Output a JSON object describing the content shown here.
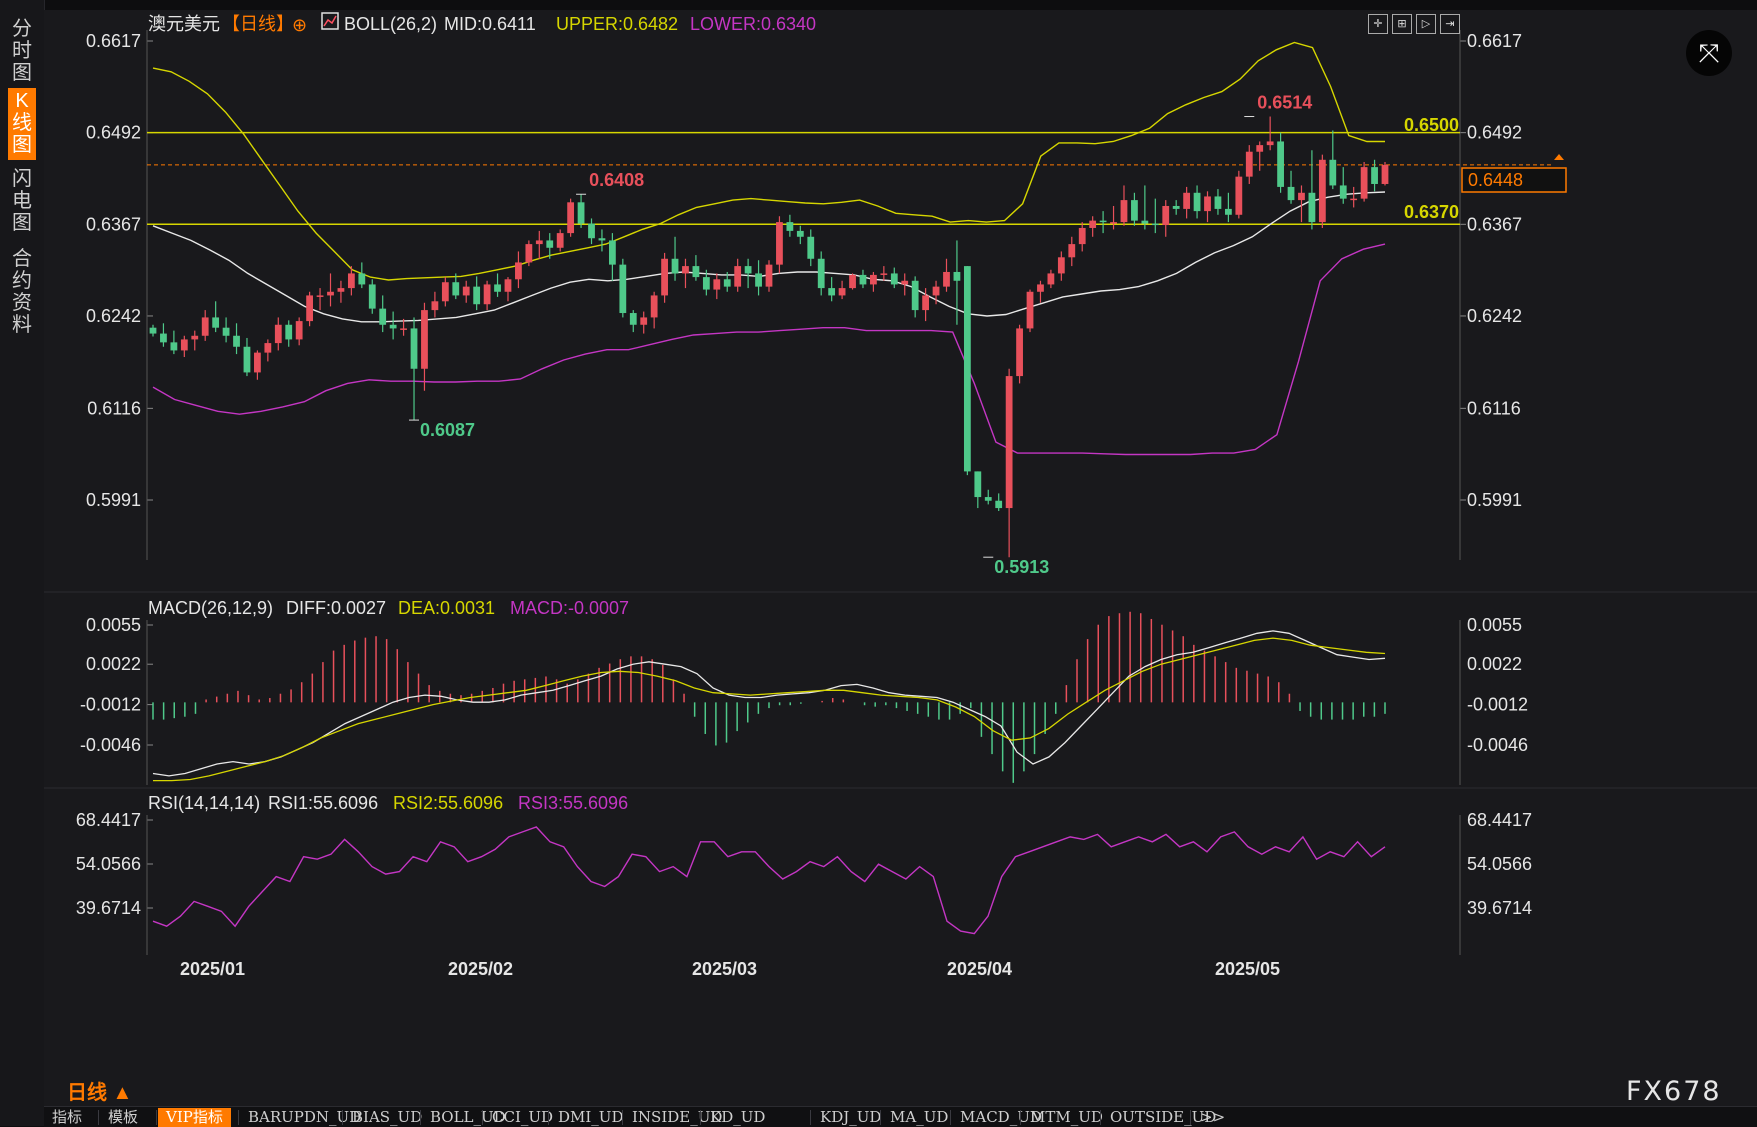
{
  "sidebar": {
    "tabs": [
      {
        "label": "分时图",
        "active": false
      },
      {
        "label": "K线图",
        "active": true
      },
      {
        "label": "闪电图",
        "active": false
      },
      {
        "label": "合约资料",
        "active": false
      }
    ]
  },
  "header": {
    "symbol": "澳元美元",
    "period": "【日线】",
    "add_symbol": "⊕",
    "boll_label": "BOLL(26,2)",
    "mid": "MID:0.6411",
    "upper": "UPPER:0.6482",
    "lower": "LOWER:0.6340"
  },
  "toolbar": {
    "icons": [
      "crosshair-icon",
      "zoom-icon",
      "play-icon",
      "end-icon"
    ]
  },
  "price_axis": {
    "left_ticks": [
      "0.6617",
      "0.6492",
      "0.6367",
      "0.6242",
      "0.6116",
      "0.5991"
    ],
    "right_ticks": [
      "0.6617",
      "0.6492",
      "0.6367",
      "0.6242",
      "0.6116",
      "0.5991"
    ],
    "current_price": "0.6448"
  },
  "annotations": {
    "hi1": "0.6408",
    "lo1": "0.6087",
    "lo2": "0.5913",
    "hi2": "0.6514",
    "level_high": "0.6500",
    "level_low": "0.6370"
  },
  "macd": {
    "label": "MACD(26,12,9)",
    "diff": "DIFF:0.0027",
    "dea": "DEA:0.0031",
    "macd": "MACD:-0.0007",
    "ticks": [
      "0.0055",
      "0.0022",
      "-0.0012",
      "-0.0046"
    ]
  },
  "rsi": {
    "label": "RSI(14,14,14)",
    "rsi1": "RSI1:55.6096",
    "rsi2": "RSI2:55.6096",
    "rsi3": "RSI3:55.6096",
    "ticks": [
      "68.4417",
      "54.0566",
      "39.6714"
    ]
  },
  "x_axis": {
    "labels": [
      "2025/01",
      "2025/02",
      "2025/03",
      "2025/04",
      "2025/05"
    ]
  },
  "bottom_tabs": [
    "指标",
    "模板",
    "VIP指标",
    "BARUPDN_UD",
    "BIAS_UD",
    "BOLL_UD",
    "CCI_UD",
    "DMI_UD",
    "INSIDE_UD",
    "KD_UD",
    "KDJ_UD",
    "MA_UD",
    "MACD_UD",
    "MTM_UD",
    "OUTSIDE_UD",
    ">>"
  ],
  "period_label": "日线 ▲",
  "brand": "FX678",
  "colors": {
    "up": "#e8505b",
    "down": "#4fc98a",
    "boll_upper": "#d6d600",
    "boll_mid": "#e8e8e8",
    "boll_lower": "#c436c4",
    "accent": "#ff7a00"
  },
  "chart_data": {
    "type": "candlestick",
    "ylim": [
      0.59,
      0.664
    ],
    "candles": [
      [
        0.6226,
        0.623,
        0.6214,
        0.6218
      ],
      [
        0.6218,
        0.6232,
        0.62,
        0.6206
      ],
      [
        0.6206,
        0.6222,
        0.619,
        0.6195
      ],
      [
        0.6195,
        0.6215,
        0.6186,
        0.621
      ],
      [
        0.621,
        0.6222,
        0.6195,
        0.6215
      ],
      [
        0.6215,
        0.625,
        0.6208,
        0.624
      ],
      [
        0.624,
        0.6262,
        0.622,
        0.6226
      ],
      [
        0.6226,
        0.624,
        0.6206,
        0.6215
      ],
      [
        0.6215,
        0.6232,
        0.619,
        0.62
      ],
      [
        0.62,
        0.6212,
        0.616,
        0.6165
      ],
      [
        0.6165,
        0.6195,
        0.6155,
        0.6192
      ],
      [
        0.6192,
        0.621,
        0.618,
        0.6205
      ],
      [
        0.6205,
        0.624,
        0.6195,
        0.623
      ],
      [
        0.623,
        0.6236,
        0.62,
        0.621
      ],
      [
        0.621,
        0.624,
        0.6202,
        0.6235
      ],
      [
        0.6235,
        0.6275,
        0.6228,
        0.627
      ],
      [
        0.627,
        0.628,
        0.625,
        0.627
      ],
      [
        0.627,
        0.63,
        0.6255,
        0.6275
      ],
      [
        0.6275,
        0.629,
        0.626,
        0.628
      ],
      [
        0.628,
        0.631,
        0.627,
        0.63
      ],
      [
        0.63,
        0.6315,
        0.628,
        0.6285
      ],
      [
        0.6285,
        0.6292,
        0.6245,
        0.6252
      ],
      [
        0.6252,
        0.627,
        0.622,
        0.623
      ],
      [
        0.623,
        0.6248,
        0.621,
        0.6225
      ],
      [
        0.6225,
        0.6238,
        0.6215,
        0.6225
      ],
      [
        0.6225,
        0.624,
        0.61,
        0.617
      ],
      [
        0.617,
        0.626,
        0.614,
        0.625
      ],
      [
        0.625,
        0.6275,
        0.624,
        0.6262
      ],
      [
        0.6262,
        0.6295,
        0.6255,
        0.6288
      ],
      [
        0.6288,
        0.63,
        0.6265,
        0.627
      ],
      [
        0.627,
        0.629,
        0.626,
        0.6282
      ],
      [
        0.6282,
        0.6296,
        0.625,
        0.6258
      ],
      [
        0.6258,
        0.629,
        0.625,
        0.6285
      ],
      [
        0.6285,
        0.63,
        0.6268,
        0.6275
      ],
      [
        0.6275,
        0.6295,
        0.6262,
        0.6292
      ],
      [
        0.6292,
        0.633,
        0.628,
        0.6315
      ],
      [
        0.6315,
        0.6345,
        0.631,
        0.634
      ],
      [
        0.634,
        0.6358,
        0.632,
        0.6345
      ],
      [
        0.6345,
        0.6355,
        0.632,
        0.6335
      ],
      [
        0.6335,
        0.636,
        0.633,
        0.6355
      ],
      [
        0.6355,
        0.6402,
        0.635,
        0.6397
      ],
      [
        0.6397,
        0.6408,
        0.6362,
        0.6368
      ],
      [
        0.6368,
        0.6375,
        0.634,
        0.6348
      ],
      [
        0.6348,
        0.636,
        0.633,
        0.6345
      ],
      [
        0.6345,
        0.6355,
        0.629,
        0.6312
      ],
      [
        0.6312,
        0.632,
        0.624,
        0.6246
      ],
      [
        0.6246,
        0.625,
        0.622,
        0.623
      ],
      [
        0.623,
        0.6248,
        0.6218,
        0.624
      ],
      [
        0.624,
        0.6275,
        0.6225,
        0.627
      ],
      [
        0.627,
        0.6328,
        0.626,
        0.632
      ],
      [
        0.632,
        0.635,
        0.629,
        0.63
      ],
      [
        0.63,
        0.632,
        0.628,
        0.631
      ],
      [
        0.631,
        0.6325,
        0.629,
        0.6295
      ],
      [
        0.6295,
        0.6305,
        0.627,
        0.6278
      ],
      [
        0.6278,
        0.63,
        0.6265,
        0.6292
      ],
      [
        0.6292,
        0.6302,
        0.6275,
        0.6282
      ],
      [
        0.6282,
        0.632,
        0.6275,
        0.631
      ],
      [
        0.631,
        0.632,
        0.628,
        0.63
      ],
      [
        0.63,
        0.6318,
        0.627,
        0.6282
      ],
      [
        0.6282,
        0.6318,
        0.6275,
        0.6312
      ],
      [
        0.6312,
        0.6378,
        0.63,
        0.637
      ],
      [
        0.637,
        0.638,
        0.635,
        0.6358
      ],
      [
        0.6358,
        0.6365,
        0.634,
        0.635
      ],
      [
        0.635,
        0.636,
        0.631,
        0.632
      ],
      [
        0.632,
        0.633,
        0.627,
        0.628
      ],
      [
        0.628,
        0.6295,
        0.6262,
        0.627
      ],
      [
        0.627,
        0.629,
        0.6265,
        0.628
      ],
      [
        0.628,
        0.63,
        0.6278,
        0.6298
      ],
      [
        0.6298,
        0.6305,
        0.628,
        0.6285
      ],
      [
        0.6285,
        0.6302,
        0.6275,
        0.6298
      ],
      [
        0.6298,
        0.631,
        0.629,
        0.63
      ],
      [
        0.63,
        0.6308,
        0.628,
        0.6285
      ],
      [
        0.6285,
        0.63,
        0.627,
        0.629
      ],
      [
        0.629,
        0.6296,
        0.624,
        0.625
      ],
      [
        0.625,
        0.628,
        0.6235,
        0.627
      ],
      [
        0.627,
        0.629,
        0.6258,
        0.6282
      ],
      [
        0.6282,
        0.632,
        0.6275,
        0.6302
      ],
      [
        0.6302,
        0.6345,
        0.623,
        0.629
      ],
      [
        0.631,
        0.631,
        0.6025,
        0.603
      ],
      [
        0.603,
        0.603,
        0.598,
        0.5995
      ],
      [
        0.5995,
        0.6005,
        0.5985,
        0.599
      ],
      [
        0.599,
        0.6,
        0.5976,
        0.598
      ],
      [
        0.598,
        0.617,
        0.5913,
        0.616
      ],
      [
        0.616,
        0.623,
        0.615,
        0.6225
      ],
      [
        0.6225,
        0.6278,
        0.622,
        0.6275
      ],
      [
        0.6275,
        0.629,
        0.626,
        0.6285
      ],
      [
        0.6285,
        0.6305,
        0.628,
        0.63
      ],
      [
        0.63,
        0.633,
        0.629,
        0.6322
      ],
      [
        0.6322,
        0.635,
        0.631,
        0.634
      ],
      [
        0.634,
        0.637,
        0.633,
        0.6362
      ],
      [
        0.6362,
        0.6378,
        0.635,
        0.6372
      ],
      [
        0.6372,
        0.6385,
        0.6355,
        0.637
      ],
      [
        0.637,
        0.6392,
        0.636,
        0.637
      ],
      [
        0.637,
        0.642,
        0.6365,
        0.64
      ],
      [
        0.64,
        0.641,
        0.6365,
        0.6372
      ],
      [
        0.6372,
        0.642,
        0.636,
        0.6368
      ],
      [
        0.6368,
        0.6402,
        0.6355,
        0.6366
      ],
      [
        0.6366,
        0.64,
        0.635,
        0.6392
      ],
      [
        0.6392,
        0.64,
        0.638,
        0.6388
      ],
      [
        0.6388,
        0.6418,
        0.6375,
        0.641
      ],
      [
        0.641,
        0.642,
        0.6375,
        0.6385
      ],
      [
        0.6385,
        0.6412,
        0.637,
        0.6405
      ],
      [
        0.6405,
        0.6415,
        0.638,
        0.6388
      ],
      [
        0.6388,
        0.641,
        0.637,
        0.638
      ],
      [
        0.638,
        0.644,
        0.6375,
        0.6432
      ],
      [
        0.6432,
        0.6475,
        0.6422,
        0.6466
      ],
      [
        0.6466,
        0.648,
        0.644,
        0.6475
      ],
      [
        0.6475,
        0.6514,
        0.6468,
        0.648
      ],
      [
        0.648,
        0.6492,
        0.641,
        0.6418
      ],
      [
        0.6418,
        0.644,
        0.6395,
        0.64
      ],
      [
        0.64,
        0.642,
        0.637,
        0.641
      ],
      [
        0.641,
        0.6468,
        0.636,
        0.637
      ],
      [
        0.637,
        0.6462,
        0.6362,
        0.6455
      ],
      [
        0.6455,
        0.6495,
        0.6415,
        0.642
      ],
      [
        0.642,
        0.6445,
        0.6395,
        0.6402
      ],
      [
        0.6402,
        0.6418,
        0.639,
        0.6402
      ],
      [
        0.6402,
        0.6452,
        0.6398,
        0.6445
      ],
      [
        0.6445,
        0.6455,
        0.6412,
        0.6422
      ],
      [
        0.6422,
        0.6452,
        0.642,
        0.6448
      ]
    ],
    "boll_upper": [
      0.658,
      0.6575,
      0.6562,
      0.6545,
      0.652,
      0.649,
      0.6455,
      0.642,
      0.6385,
      0.6355,
      0.633,
      0.6305,
      0.6295,
      0.6291,
      0.6293,
      0.6294,
      0.6295,
      0.6296,
      0.63,
      0.6305,
      0.631,
      0.6318,
      0.6325,
      0.633,
      0.6335,
      0.634,
      0.635,
      0.636,
      0.6368,
      0.638,
      0.639,
      0.6395,
      0.64,
      0.6402,
      0.64,
      0.6398,
      0.6396,
      0.6395,
      0.6397,
      0.64,
      0.6392,
      0.6382,
      0.638,
      0.6378,
      0.637,
      0.6372,
      0.637,
      0.6372,
      0.6395,
      0.646,
      0.6478,
      0.6478,
      0.6477,
      0.648,
      0.6488,
      0.6498,
      0.6518,
      0.653,
      0.654,
      0.6548,
      0.6565,
      0.659,
      0.6605,
      0.6615,
      0.6608,
      0.6555,
      0.6488,
      0.648,
      0.648
    ],
    "boll_mid": [
      0.6365,
      0.6355,
      0.6345,
      0.6332,
      0.6318,
      0.63,
      0.6285,
      0.627,
      0.6255,
      0.6245,
      0.6238,
      0.6234,
      0.6234,
      0.6235,
      0.6236,
      0.6238,
      0.624,
      0.6245,
      0.625,
      0.626,
      0.627,
      0.628,
      0.6288,
      0.6292,
      0.629,
      0.6292,
      0.6296,
      0.63,
      0.6302,
      0.63,
      0.6298,
      0.6298,
      0.6296,
      0.63,
      0.6302,
      0.6302,
      0.63,
      0.6298,
      0.6292,
      0.629,
      0.6282,
      0.6268,
      0.6255,
      0.6245,
      0.6242,
      0.6244,
      0.6252,
      0.626,
      0.6268,
      0.6272,
      0.6276,
      0.6278,
      0.6282,
      0.629,
      0.63,
      0.6315,
      0.6328,
      0.6338,
      0.635,
      0.6368,
      0.6385,
      0.6398,
      0.6404,
      0.6408,
      0.641,
      0.6411
    ],
    "boll_lower": [
      0.6145,
      0.6128,
      0.612,
      0.6112,
      0.6108,
      0.6112,
      0.6118,
      0.6125,
      0.614,
      0.615,
      0.6155,
      0.6153,
      0.6153,
      0.6152,
      0.6152,
      0.6153,
      0.6153,
      0.6156,
      0.617,
      0.6182,
      0.619,
      0.6196,
      0.6196,
      0.6203,
      0.621,
      0.6216,
      0.6218,
      0.622,
      0.622,
      0.6222,
      0.6224,
      0.6226,
      0.6226,
      0.6222,
      0.6222,
      0.6222,
      0.6222,
      0.622,
      0.615,
      0.607,
      0.6055,
      0.6055,
      0.6055,
      0.6055,
      0.6054,
      0.6053,
      0.6053,
      0.6053,
      0.6053,
      0.6055,
      0.6055,
      0.606,
      0.608,
      0.618,
      0.629,
      0.632,
      0.6333,
      0.634
    ],
    "macd_hist": [
      -0.0012,
      -0.0012,
      -0.0011,
      -0.001,
      -0.0008,
      0.0002,
      0.0004,
      0.0006,
      0.0008,
      0.0005,
      0.0002,
      0.0003,
      0.0006,
      0.0009,
      0.0014,
      0.002,
      0.0028,
      0.0036,
      0.004,
      0.0043,
      0.0045,
      0.0046,
      0.0044,
      0.0037,
      0.0028,
      0.002,
      0.0012,
      0.0008,
      0.0006,
      0.0005,
      0.0006,
      0.0008,
      0.001,
      0.0013,
      0.0015,
      0.0016,
      0.0017,
      0.0018,
      0.0016,
      0.0013,
      0.0016,
      0.002,
      0.0024,
      0.0027,
      0.003,
      0.0032,
      0.0032,
      0.003,
      0.0026,
      0.0016,
      0.0006,
      -0.001,
      -0.0022,
      -0.003,
      -0.0028,
      -0.002,
      -0.0014,
      -0.0008,
      -0.0004,
      -0.0002,
      -0.0002,
      -0.0001,
      0.0,
      0.0001,
      0.0003,
      0.0002,
      0.0,
      -0.0002,
      -0.0003,
      -0.0002,
      -0.0004,
      -0.0006,
      -0.0008,
      -0.001,
      -0.0012,
      -0.0012,
      -0.0008,
      -0.0004,
      -0.0024,
      -0.0036,
      -0.0048,
      -0.0056,
      -0.0048,
      -0.0036,
      -0.0022,
      -0.0008,
      0.0012,
      0.003,
      0.0044,
      0.0054,
      0.006,
      0.0062,
      0.0063,
      0.0062,
      0.0058,
      0.0054,
      0.005,
      0.0046,
      0.004,
      0.0036,
      0.0032,
      0.0028,
      0.0024,
      0.0022,
      0.002,
      0.0018,
      0.0014,
      0.0006,
      -0.0006,
      -0.001,
      -0.0012,
      -0.0012,
      -0.0012,
      -0.0012,
      -0.001,
      -0.001,
      -0.0008
    ],
    "macd_diff": [
      -0.007,
      -0.0072,
      -0.007,
      -0.0066,
      -0.0062,
      -0.006,
      -0.0062,
      -0.006,
      -0.0056,
      -0.005,
      -0.0044,
      -0.0036,
      -0.0028,
      -0.0022,
      -0.0016,
      -0.001,
      -0.0006,
      -0.0004,
      -0.0005,
      -0.0008,
      -0.001,
      -0.001,
      -0.0008,
      -0.0004,
      -0.0002,
      0.0,
      0.0004,
      0.0008,
      0.0012,
      0.0018,
      0.0022,
      0.0024,
      0.0022,
      0.002,
      0.0014,
      0.0002,
      -0.0004,
      -0.0006,
      -0.0006,
      -0.0004,
      -0.0003,
      -0.0002,
      0.0,
      0.0004,
      0.0005,
      0.0002,
      -0.0002,
      -0.0004,
      -0.0005,
      -0.0006,
      -0.001,
      -0.0016,
      -0.0022,
      -0.003,
      -0.0052,
      -0.0062,
      -0.0056,
      -0.0044,
      -0.003,
      -0.0016,
      -0.0002,
      0.0012,
      0.002,
      0.0026,
      0.003,
      0.0032,
      0.0036,
      0.004,
      0.0044,
      0.0048,
      0.005,
      0.0048,
      0.0042,
      0.0036,
      0.003,
      0.0028,
      0.0026,
      0.0027
    ],
    "macd_dea": [
      -0.0076,
      -0.0076,
      -0.0075,
      -0.0072,
      -0.0068,
      -0.0064,
      -0.006,
      -0.0055,
      -0.0048,
      -0.004,
      -0.0034,
      -0.0028,
      -0.0024,
      -0.002,
      -0.0016,
      -0.0012,
      -0.0009,
      -0.0006,
      -0.0004,
      -0.0002,
      0.0,
      0.0004,
      0.0008,
      0.0012,
      0.0015,
      0.0016,
      0.0015,
      0.0012,
      0.0008,
      0.0002,
      -0.0002,
      -0.0003,
      -0.0004,
      -0.0003,
      -0.0002,
      -0.0001,
      0.0,
      0.0,
      -0.0002,
      -0.0004,
      -0.0005,
      -0.0006,
      -0.0008,
      -0.0014,
      -0.0022,
      -0.0034,
      -0.0042,
      -0.004,
      -0.0032,
      -0.002,
      -0.001,
      0.0,
      0.0008,
      0.0016,
      0.0022,
      0.0026,
      0.003,
      0.0034,
      0.0038,
      0.0042,
      0.0044,
      0.0042,
      0.0038,
      0.0036,
      0.0034,
      0.0032,
      0.0031
    ],
    "rsi": [
      40,
      38,
      42,
      48,
      46,
      44,
      38,
      46,
      52,
      58,
      56,
      66,
      65,
      67,
      73,
      68,
      62,
      59,
      60,
      66,
      64,
      72,
      70,
      64,
      66,
      69,
      74,
      76,
      78,
      72,
      70,
      62,
      56,
      54,
      58,
      67,
      66,
      60,
      62,
      58,
      72,
      72,
      66,
      68,
      68,
      62,
      57,
      60,
      64,
      62,
      66,
      60,
      56,
      63,
      60,
      57,
      62,
      58,
      40,
      36,
      35,
      42,
      58,
      66,
      68,
      70,
      72,
      74,
      73,
      75,
      70,
      72,
      74,
      72,
      75,
      70,
      72,
      68,
      74,
      76,
      70,
      67,
      70,
      68,
      74,
      65,
      68,
      66,
      72,
      66,
      70
    ],
    "x_labels": [
      "2025/01",
      "2025/02",
      "2025/03",
      "2025/04",
      "2025/05"
    ]
  }
}
